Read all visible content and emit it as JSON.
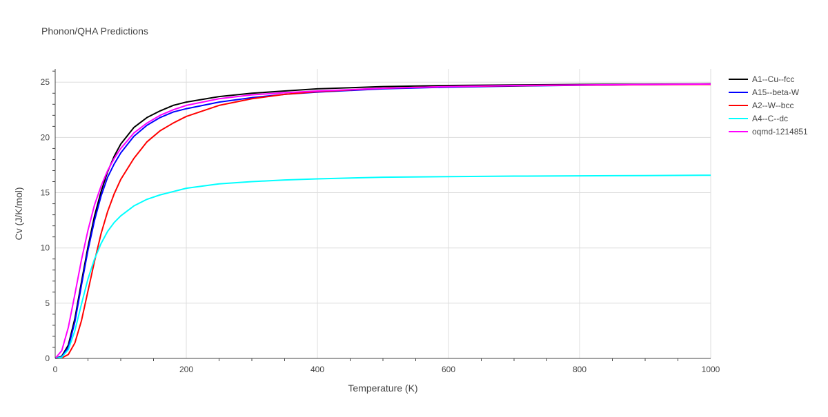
{
  "chart_data": {
    "type": "line",
    "title": "Phonon/QHA Predictions",
    "xlabel": "Temperature (K)",
    "ylabel": "Cv (J/K/mol)",
    "xlim": [
      0,
      1000
    ],
    "ylim": [
      0,
      26.2
    ],
    "x_ticks": [
      0,
      200,
      400,
      600,
      800,
      1000
    ],
    "y_ticks": [
      0,
      5,
      10,
      15,
      20,
      25
    ],
    "grid": true,
    "legend_position": "top-right outside",
    "series": [
      {
        "name": "A1--Cu--fcc",
        "color": "#000000",
        "x": [
          0,
          10,
          20,
          30,
          40,
          50,
          60,
          70,
          80,
          90,
          100,
          120,
          140,
          160,
          180,
          200,
          250,
          300,
          350,
          400,
          500,
          600,
          700,
          800,
          900,
          1000
        ],
        "y": [
          0,
          0.2,
          1.2,
          3.6,
          6.9,
          10.1,
          12.9,
          15.1,
          16.9,
          18.3,
          19.4,
          20.9,
          21.8,
          22.4,
          22.9,
          23.2,
          23.7,
          24.0,
          24.2,
          24.4,
          24.6,
          24.7,
          24.75,
          24.8,
          24.82,
          24.85
        ]
      },
      {
        "name": "A15--beta-W",
        "color": "#0000ff",
        "x": [
          0,
          10,
          20,
          30,
          40,
          50,
          60,
          70,
          80,
          90,
          100,
          120,
          140,
          160,
          180,
          200,
          250,
          300,
          350,
          400,
          500,
          600,
          700,
          800,
          900,
          1000
        ],
        "y": [
          0,
          0.15,
          1.0,
          3.3,
          6.6,
          9.8,
          12.5,
          14.7,
          16.4,
          17.6,
          18.6,
          20.1,
          21.1,
          21.8,
          22.3,
          22.6,
          23.2,
          23.6,
          23.9,
          24.1,
          24.4,
          24.55,
          24.65,
          24.72,
          24.78,
          24.82
        ]
      },
      {
        "name": "A2--W--bcc",
        "color": "#ff0000",
        "x": [
          0,
          10,
          20,
          30,
          40,
          50,
          60,
          70,
          80,
          90,
          100,
          120,
          140,
          160,
          180,
          200,
          250,
          300,
          350,
          400,
          500,
          600,
          700,
          800,
          900,
          1000
        ],
        "y": [
          0,
          0.05,
          0.35,
          1.4,
          3.4,
          6.1,
          8.8,
          11.3,
          13.3,
          14.9,
          16.2,
          18.1,
          19.6,
          20.6,
          21.3,
          21.9,
          22.9,
          23.5,
          23.9,
          24.15,
          24.45,
          24.6,
          24.68,
          24.73,
          24.77,
          24.8
        ]
      },
      {
        "name": "A4--C--dc",
        "color": "#00ffff",
        "x": [
          0,
          10,
          20,
          30,
          40,
          50,
          60,
          70,
          80,
          90,
          100,
          120,
          140,
          160,
          180,
          200,
          250,
          300,
          350,
          400,
          500,
          600,
          700,
          800,
          900,
          1000
        ],
        "y": [
          0,
          0.1,
          0.8,
          2.5,
          4.9,
          7.2,
          9.0,
          10.4,
          11.5,
          12.3,
          12.9,
          13.8,
          14.4,
          14.8,
          15.1,
          15.4,
          15.8,
          16.0,
          16.15,
          16.25,
          16.4,
          16.45,
          16.5,
          16.52,
          16.55,
          16.58
        ]
      },
      {
        "name": "oqmd-1214851",
        "color": "#ff00ff",
        "x": [
          0,
          10,
          20,
          30,
          40,
          50,
          60,
          70,
          80,
          90,
          100,
          120,
          140,
          160,
          180,
          200,
          250,
          300,
          350,
          400,
          500,
          600,
          700,
          800,
          900,
          1000
        ],
        "y": [
          0,
          0.7,
          2.8,
          5.8,
          8.9,
          11.6,
          13.9,
          15.6,
          17.0,
          18.1,
          19.0,
          20.4,
          21.3,
          22.0,
          22.5,
          22.9,
          23.5,
          23.85,
          24.05,
          24.2,
          24.45,
          24.6,
          24.7,
          24.75,
          24.8,
          24.83
        ]
      }
    ]
  }
}
